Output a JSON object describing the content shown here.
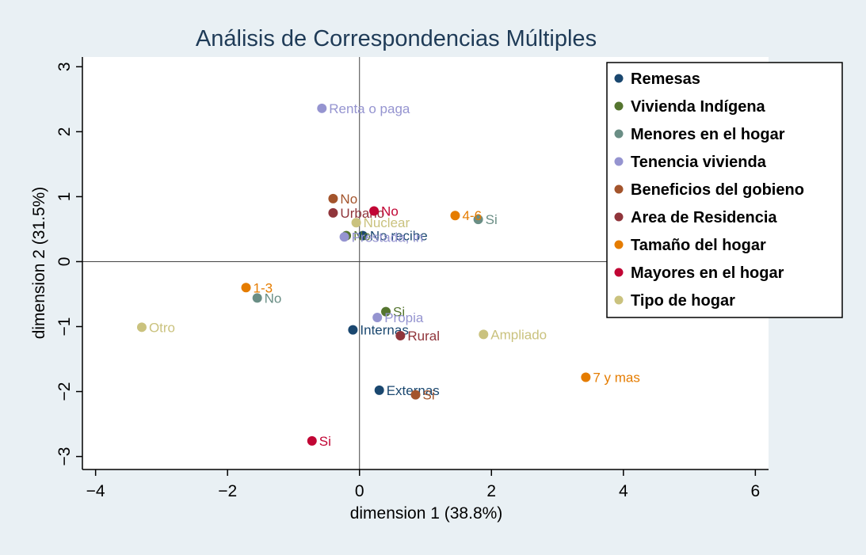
{
  "chart_data": {
    "type": "scatter",
    "title": "Análisis de Correspondencias Múltiples",
    "xlabel": "dimension 1 (38.8%)",
    "ylabel": "dimension 2 (31.5%)",
    "xlim": [
      -4.2,
      6.2
    ],
    "ylim": [
      -3.2,
      3.15
    ],
    "xticks": [
      -4,
      -2,
      0,
      2,
      4,
      6
    ],
    "yticks": [
      -3,
      -2,
      -1,
      0,
      1,
      2,
      3
    ],
    "reference_lines": {
      "x": 0,
      "y": 0
    },
    "legend_position": "top-right",
    "series": [
      {
        "name": "Remesas",
        "color": "#1a476f",
        "points": [
          {
            "x": -0.1,
            "y": -1.05,
            "label": "Internas"
          },
          {
            "x": 0.3,
            "y": -1.98,
            "label": "Externas"
          },
          {
            "x": 0.05,
            "y": 0.4,
            "label": "No recibe"
          }
        ]
      },
      {
        "name": "Vivienda Indígena",
        "color": "#55752f",
        "points": [
          {
            "x": 0.4,
            "y": -0.77,
            "label": "Si"
          },
          {
            "x": -0.2,
            "y": 0.4,
            "label": "No"
          }
        ]
      },
      {
        "name": "Menores en el hogar",
        "color": "#6a8e85",
        "points": [
          {
            "x": 1.8,
            "y": 0.65,
            "label": "Si"
          },
          {
            "x": -1.55,
            "y": -0.56,
            "label": "No"
          }
        ]
      },
      {
        "name": "Tenencia vivienda",
        "color": "#9594d0",
        "points": [
          {
            "x": -0.57,
            "y": 2.36,
            "label": "Renta o paga"
          },
          {
            "x": 0.27,
            "y": -0.86,
            "label": "Propia"
          },
          {
            "x": -0.23,
            "y": 0.38,
            "label": "Prestada, in"
          }
        ]
      },
      {
        "name": "Beneficios del gobieno",
        "color": "#a3542c",
        "points": [
          {
            "x": -0.4,
            "y": 0.97,
            "label": "No"
          },
          {
            "x": 0.85,
            "y": -2.05,
            "label": "Si"
          }
        ]
      },
      {
        "name": "Area de Residencia",
        "color": "#90353b",
        "points": [
          {
            "x": -0.4,
            "y": 0.75,
            "label": "Urbano"
          },
          {
            "x": 0.62,
            "y": -1.14,
            "label": "Rural"
          }
        ]
      },
      {
        "name": "Tamaño del hogar",
        "color": "#e57c00",
        "points": [
          {
            "x": -1.72,
            "y": -0.4,
            "label": "1-3"
          },
          {
            "x": 1.45,
            "y": 0.71,
            "label": "4-6"
          },
          {
            "x": 3.43,
            "y": -1.78,
            "label": "7 y mas"
          }
        ]
      },
      {
        "name": "Mayores en el hogar",
        "color": "#c10534",
        "points": [
          {
            "x": 0.22,
            "y": 0.78,
            "label": "No"
          },
          {
            "x": -0.72,
            "y": -2.76,
            "label": "Si"
          }
        ]
      },
      {
        "name": "Tipo de hogar",
        "color": "#cac27e",
        "points": [
          {
            "x": -0.05,
            "y": 0.6,
            "label": "Nuclear"
          },
          {
            "x": 1.88,
            "y": -1.12,
            "label": "Ampliado"
          },
          {
            "x": -3.3,
            "y": -1.01,
            "label": "Otro"
          }
        ]
      }
    ]
  }
}
